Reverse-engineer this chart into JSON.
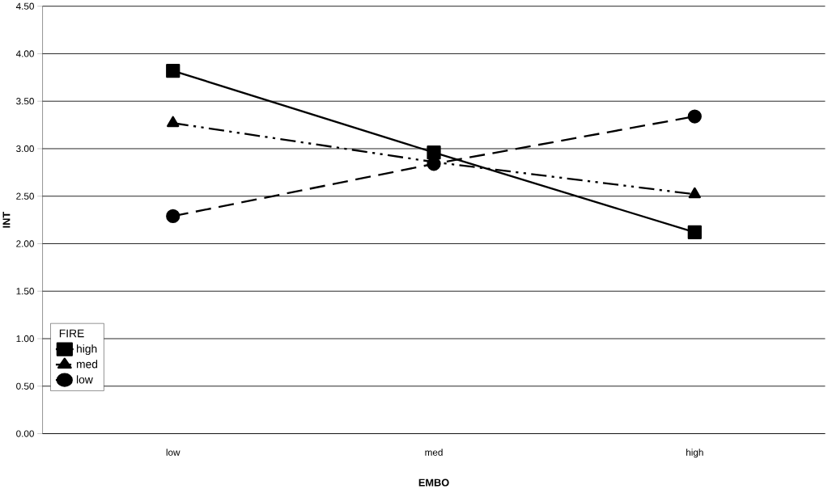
{
  "chart_data": {
    "type": "line",
    "xlabel": "EMBO",
    "ylabel": "INT",
    "legend_title": "FIRE",
    "categories": [
      "low",
      "med",
      "high"
    ],
    "series": [
      {
        "name": "high",
        "color": "#000000",
        "marker": "square",
        "line_style": "solid",
        "values": [
          3.82,
          2.96,
          2.12
        ]
      },
      {
        "name": "med",
        "color": "#000000",
        "marker": "triangle",
        "line_style": "dash-dot-dot",
        "values": [
          3.27,
          2.86,
          2.52
        ]
      },
      {
        "name": "low",
        "color": "#000000",
        "marker": "circle",
        "line_style": "dashed",
        "values": [
          2.29,
          2.84,
          3.34
        ]
      }
    ],
    "ylim": [
      0,
      4.5
    ],
    "yticks": [
      {
        "value": 0,
        "label": "0.00"
      },
      {
        "value": 0.5,
        "label": "0.50"
      },
      {
        "value": 1,
        "label": "1.00"
      },
      {
        "value": 1.5,
        "label": "1.50"
      },
      {
        "value": 2,
        "label": "2.00"
      },
      {
        "value": 2.5,
        "label": "2.50"
      },
      {
        "value": 3,
        "label": "3.00"
      },
      {
        "value": 3.5,
        "label": "3.50"
      },
      {
        "value": 4,
        "label": "4.00"
      },
      {
        "value": 4.5,
        "label": "4.50"
      }
    ],
    "grid": "y",
    "legend": "bottom left"
  }
}
